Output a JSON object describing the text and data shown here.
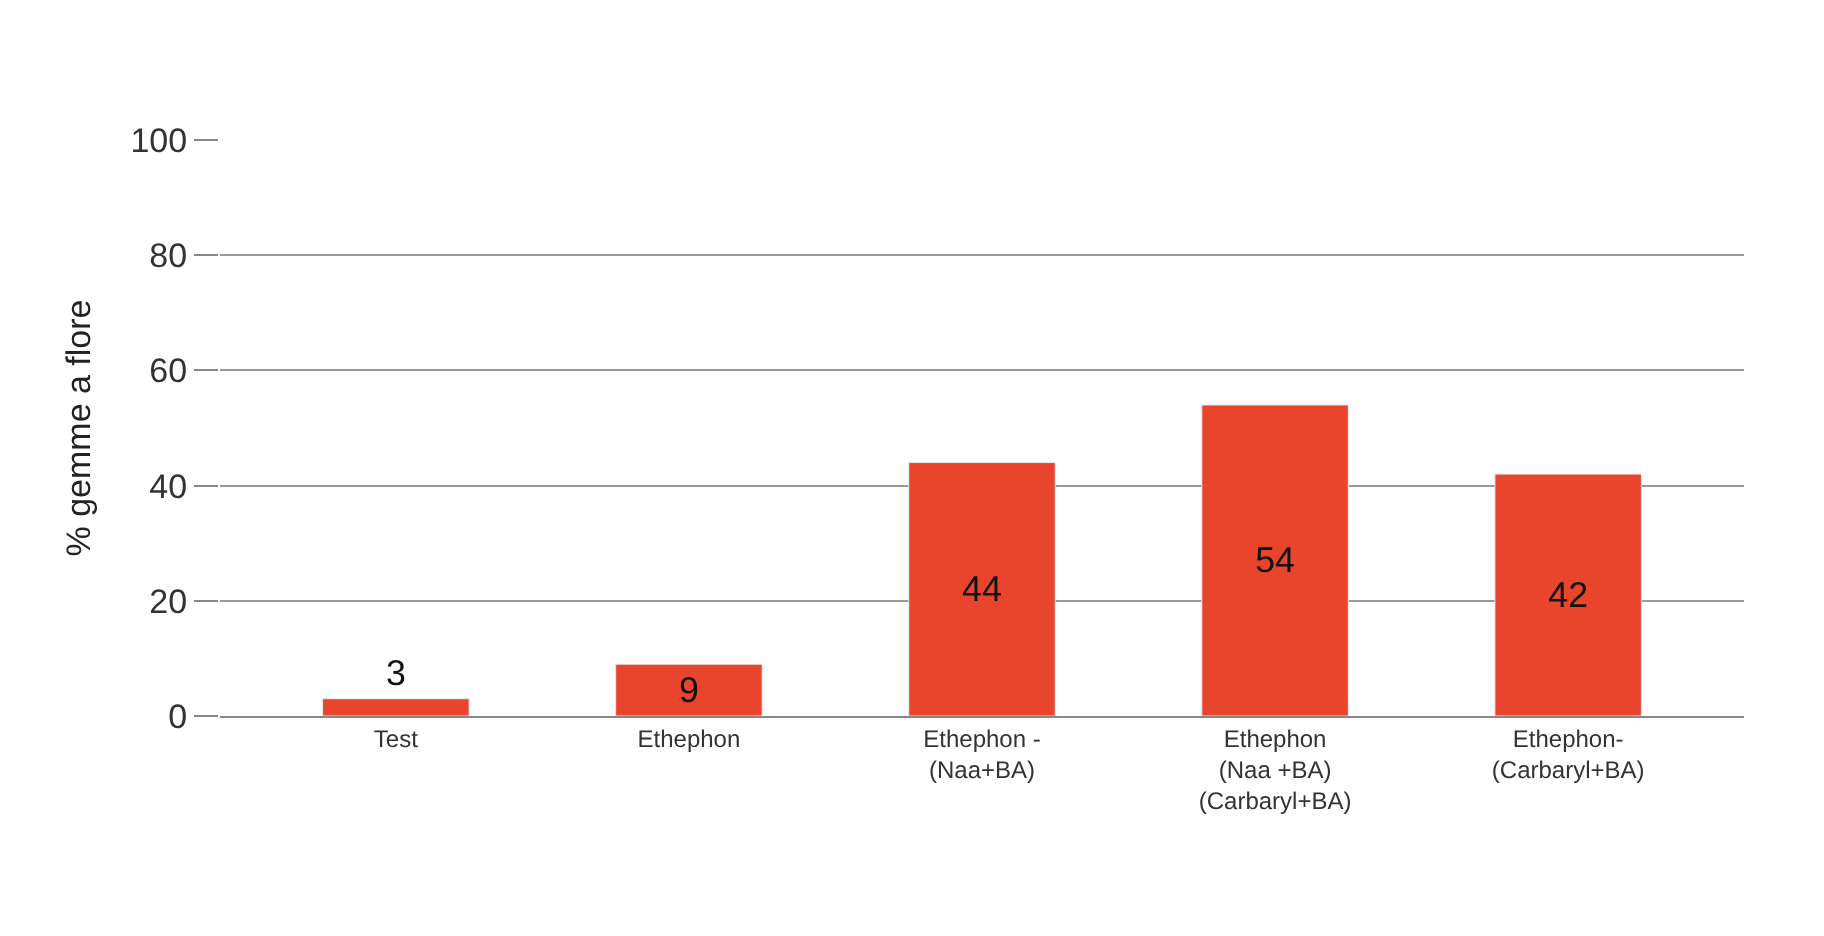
{
  "chart_data": {
    "type": "bar",
    "ylabel": "% gemme a flore",
    "categories": [
      "Test",
      "Ethephon",
      "Ethephon -\n(Naa+BA)",
      "Ethephon\n(Naa +BA)\n(Carbaryl+BA)",
      "Ethephon-\n(Carbaryl+BA)"
    ],
    "values": [
      3,
      9,
      44,
      54,
      42
    ],
    "color": "#e8452c",
    "ylim": [
      0,
      100
    ],
    "yticks": [
      0,
      20,
      40,
      60,
      80,
      100
    ],
    "grid": "y",
    "data_labels": true
  }
}
